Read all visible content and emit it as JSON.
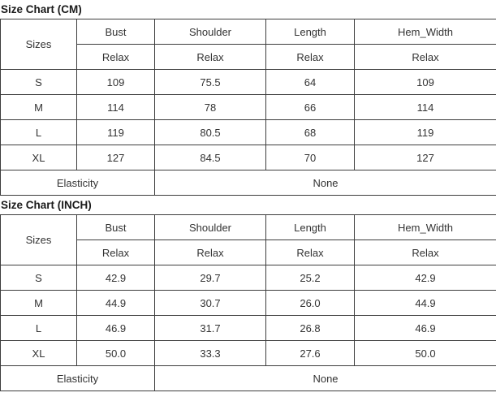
{
  "page": {
    "background": "#ffffff",
    "border_color": "#3d3d3d",
    "text_color": "#333333"
  },
  "tables": [
    {
      "title": "Size Chart (CM)",
      "header": {
        "sizes_label": "Sizes",
        "columns": [
          "Bust",
          "Shoulder",
          "Length",
          "Hem_Width"
        ],
        "sub": [
          "Relax",
          "Relax",
          "Relax",
          "Relax"
        ]
      },
      "rows": [
        {
          "size": "S",
          "values": [
            "109",
            "75.5",
            "64",
            "109"
          ]
        },
        {
          "size": "M",
          "values": [
            "114",
            "78",
            "66",
            "114"
          ]
        },
        {
          "size": "L",
          "values": [
            "119",
            "80.5",
            "68",
            "119"
          ]
        },
        {
          "size": "XL",
          "values": [
            "127",
            "84.5",
            "70",
            "127"
          ]
        }
      ],
      "footer": {
        "label": "Elasticity",
        "value": "None"
      }
    },
    {
      "title": "Size Chart (INCH)",
      "header": {
        "sizes_label": "Sizes",
        "columns": [
          "Bust",
          "Shoulder",
          "Length",
          "Hem_Width"
        ],
        "sub": [
          "Relax",
          "Relax",
          "Relax",
          "Relax"
        ]
      },
      "rows": [
        {
          "size": "S",
          "values": [
            "42.9",
            "29.7",
            "25.2",
            "42.9"
          ]
        },
        {
          "size": "M",
          "values": [
            "44.9",
            "30.7",
            "26.0",
            "44.9"
          ]
        },
        {
          "size": "L",
          "values": [
            "46.9",
            "31.7",
            "26.8",
            "46.9"
          ]
        },
        {
          "size": "XL",
          "values": [
            "50.0",
            "33.3",
            "27.6",
            "50.0"
          ]
        }
      ],
      "footer": {
        "label": "Elasticity",
        "value": "None"
      }
    }
  ]
}
